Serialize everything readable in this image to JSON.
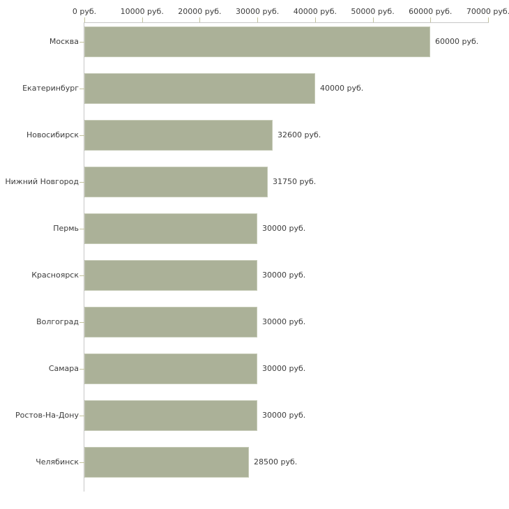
{
  "chart_data": {
    "type": "bar",
    "orientation": "horizontal",
    "title": "",
    "unit": "руб.",
    "categories": [
      "Москва",
      "Екатеринбург",
      "Новосибирск",
      "Нижний Новгород",
      "Пермь",
      "Красноярск",
      "Волгоград",
      "Самара",
      "Ростов-На-Дону",
      "Челябинск"
    ],
    "values": [
      60000,
      40000,
      32600,
      31750,
      30000,
      30000,
      30000,
      30000,
      30000,
      28500
    ],
    "value_labels": [
      "60000 руб.",
      "40000 руб.",
      "32600 руб.",
      "31750 руб.",
      "30000 руб.",
      "30000 руб.",
      "30000 руб.",
      "30000 руб.",
      "30000 руб.",
      "28500 руб."
    ],
    "x_axis": {
      "position": "top",
      "min": 0,
      "max": 70000,
      "ticks": [
        0,
        10000,
        20000,
        30000,
        40000,
        50000,
        60000,
        70000
      ],
      "tick_labels": [
        "0 руб.",
        "10000 руб.",
        "20000 руб.",
        "30000 руб.",
        "40000 руб.",
        "50000 руб.",
        "60000 руб.",
        "70000 руб."
      ]
    },
    "grid": false,
    "legend": false
  },
  "colors": {
    "background": "#ffffff",
    "bar_fill": "#abb198",
    "bar_border": "#c5cab6",
    "axis_line": "#c6c6c6",
    "tick_mark": "#c1c19b",
    "text": "#3c3c3c"
  }
}
